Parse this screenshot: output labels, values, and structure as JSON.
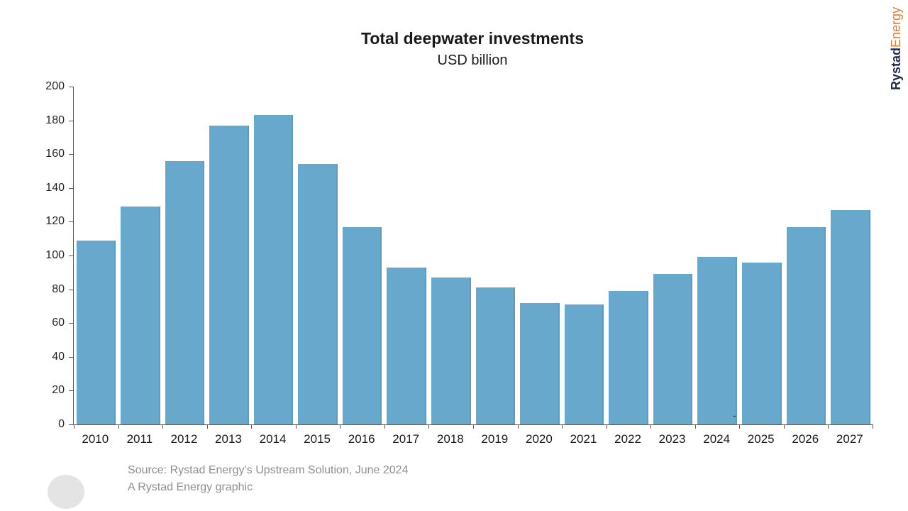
{
  "header": {
    "title": "Total deepwater investments",
    "subtitle": "USD billion"
  },
  "logo": {
    "brand_primary": "Rystad",
    "brand_secondary": "Energy"
  },
  "footer": {
    "source_line": "Source: Rystad Energy’s Upstream Solution, June 2024",
    "credit_line": "A Rystad Energy graphic"
  },
  "annotation_dash": "-",
  "colors": {
    "bar": "#68a8cc",
    "bar_edge": "#5e9bc2",
    "axis": "#595959",
    "logo_navy": "#1f2b4a",
    "logo_orange": "#e0813a",
    "source_gray": "#8f8f8f",
    "watermark_gray": "#e4e4e4"
  },
  "chart_data": {
    "type": "bar",
    "title": "Total deepwater investments",
    "subtitle": "USD billion",
    "ylabel": "USD billion",
    "xlabel": "",
    "categories": [
      "2010",
      "2011",
      "2012",
      "2013",
      "2014",
      "2015",
      "2016",
      "2017",
      "2018",
      "2019",
      "2020",
      "2021",
      "2022",
      "2023",
      "2024",
      "2025",
      "2026",
      "2027"
    ],
    "values": [
      109,
      129,
      156,
      177,
      183,
      154,
      117,
      93,
      87,
      81,
      72,
      71,
      79,
      89,
      99,
      96,
      117,
      127
    ],
    "ylim": [
      0,
      200
    ],
    "ytick_step": 20,
    "grid": false,
    "legend_position": "none"
  }
}
